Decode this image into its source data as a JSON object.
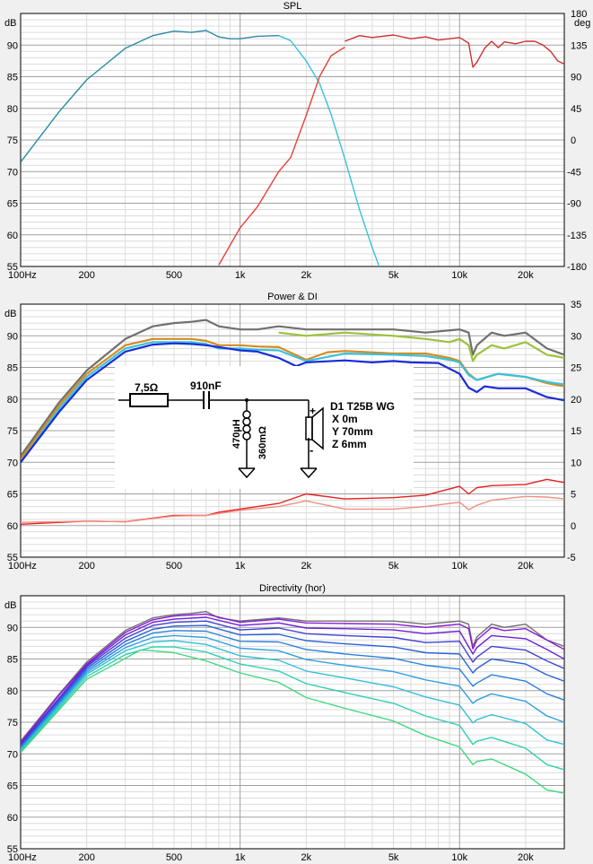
{
  "x_ticks": [
    {
      "v": 100,
      "label": "100Hz"
    },
    {
      "v": 200,
      "label": "200"
    },
    {
      "v": 500,
      "label": "500"
    },
    {
      "v": 1000,
      "label": "1k"
    },
    {
      "v": 2000,
      "label": "2k"
    },
    {
      "v": 5000,
      "label": "5k"
    },
    {
      "v": 10000,
      "label": "10k"
    },
    {
      "v": 20000,
      "label": "20k"
    }
  ],
  "chart_data": [
    {
      "type": "line",
      "title": "SPL",
      "ylabel": "dB",
      "y2label": "deg",
      "xlim": [
        100,
        30000
      ],
      "xscale": "log",
      "ylim": [
        55,
        95
      ],
      "y2lim": [
        -180,
        180
      ],
      "yticks": [
        55,
        60,
        65,
        70,
        75,
        80,
        85,
        90
      ],
      "y2ticks": [
        -180,
        -135,
        -90,
        -45,
        0,
        45,
        90,
        135,
        180
      ],
      "grid": true,
      "series": [
        {
          "color": "#2a8aa8",
          "axis": "left",
          "x": [
            100,
            150,
            200,
            300,
            400,
            500,
            600,
            700,
            800,
            900,
            1000,
            1200,
            1500
          ],
          "y": [
            71.5,
            79.5,
            84.5,
            89.5,
            91.5,
            92.2,
            92.0,
            92.3,
            91.3,
            91.0,
            91.0,
            91.4,
            91.5
          ]
        },
        {
          "color": "#35c3dc",
          "axis": "left",
          "x": [
            1500,
            1700,
            2000,
            2300,
            2600,
            3000,
            3500,
            4000,
            4300
          ],
          "y": [
            91.5,
            90.7,
            87.5,
            84.0,
            79.0,
            72.0,
            64.0,
            58.0,
            55.0
          ]
        },
        {
          "color": "#e8403a",
          "axis": "right",
          "x": [
            800,
            1000,
            1200,
            1500,
            1700,
            2000,
            2300,
            2600,
            3000
          ],
          "y": [
            -178,
            -125,
            -95,
            -45,
            -25,
            35,
            90,
            120,
            132
          ]
        },
        {
          "color": "#d03030",
          "axis": "left",
          "x": [
            3000,
            3500,
            4000,
            5000,
            6000,
            7000,
            8000,
            9000,
            10000,
            11000,
            11500,
            12000,
            13000,
            14000,
            15000,
            16000,
            18000,
            20000,
            22000,
            24000,
            26000,
            28000,
            30000
          ],
          "y": [
            90.6,
            91.5,
            91.2,
            91.6,
            91.0,
            91.3,
            90.8,
            91.0,
            91.2,
            90.3,
            86.5,
            87.3,
            89.5,
            90.6,
            89.6,
            90.5,
            90.2,
            90.6,
            90.6,
            90.0,
            89.0,
            87.5,
            87.0
          ]
        }
      ]
    },
    {
      "type": "line",
      "title": "Power & DI",
      "ylabel": "dB",
      "xlim": [
        100,
        30000
      ],
      "xscale": "log",
      "ylim": [
        55,
        95
      ],
      "y2lim": [
        -5,
        35
      ],
      "yticks": [
        55,
        60,
        65,
        70,
        75,
        80,
        85,
        90
      ],
      "y2ticks": [
        -5,
        0,
        5,
        10,
        15,
        20,
        25,
        30,
        35
      ],
      "grid": true,
      "series": [
        {
          "color": "#707070",
          "axis": "left",
          "x": [
            100,
            150,
            200,
            300,
            400,
            500,
            600,
            700,
            800,
            1000,
            1200,
            1500,
            2000,
            3000,
            5000,
            7000,
            10000,
            11000,
            11500,
            12000,
            14000,
            16000,
            20000,
            25000,
            30000
          ],
          "y": [
            71,
            79.5,
            84.5,
            89.5,
            91.5,
            92,
            92.2,
            92.5,
            91.5,
            91,
            91,
            91.5,
            91,
            91,
            91,
            90.5,
            91,
            90.5,
            87,
            88.5,
            90.5,
            90,
            90.5,
            88,
            87
          ]
        },
        {
          "color": "#9ac43a",
          "axis": "left",
          "x": [
            1500,
            2000,
            3000,
            5000,
            7000,
            9000,
            10000,
            11000,
            11500,
            12000,
            14000,
            16000,
            20000,
            25000,
            30000
          ],
          "y": [
            90.5,
            90,
            90.5,
            90,
            89.5,
            89,
            89.5,
            88.5,
            86,
            87,
            88.5,
            88,
            89,
            87,
            86.5
          ]
        },
        {
          "color": "#d88a20",
          "axis": "left",
          "x": [
            100,
            150,
            200,
            300,
            400,
            500,
            600,
            700,
            800,
            1000,
            1200,
            1500,
            2000,
            2500,
            3000,
            5000,
            7000,
            9000,
            10000,
            11000,
            12000,
            15000,
            20000,
            25000,
            30000
          ],
          "y": [
            70.5,
            79,
            84,
            88.5,
            89.5,
            89.5,
            89.5,
            89.2,
            88.5,
            88.5,
            88.3,
            88.2,
            86.2,
            87.4,
            87.6,
            87.2,
            87.2,
            86.5,
            86,
            84,
            83,
            84,
            83.5,
            82.5,
            82
          ]
        },
        {
          "color": "#35c3dc",
          "axis": "left",
          "x": [
            100,
            150,
            200,
            300,
            400,
            500,
            600,
            700,
            800,
            1000,
            1200,
            1500,
            2000,
            3000,
            5000,
            7000,
            9000,
            10000,
            11000,
            12000,
            15000,
            20000,
            25000,
            30000
          ],
          "y": [
            70,
            78.5,
            83.5,
            88,
            89,
            89,
            89,
            88.7,
            88,
            88,
            87.8,
            87.7,
            86,
            87.2,
            87,
            86.8,
            86.2,
            85.8,
            83.8,
            83,
            84,
            83.5,
            82.7,
            82.3
          ]
        },
        {
          "color": "#1a2cd8",
          "axis": "left",
          "x": [
            100,
            150,
            200,
            300,
            400,
            500,
            600,
            700,
            800,
            1000,
            1200,
            1500,
            1800,
            2000,
            3000,
            4000,
            5000,
            6000,
            8000,
            10000,
            11000,
            12000,
            13000,
            15000,
            20000,
            25000,
            30000
          ],
          "y": [
            70,
            78,
            83,
            87.5,
            88.6,
            88.8,
            88.7,
            88.5,
            88.2,
            87.7,
            87.5,
            86.5,
            85.2,
            85.8,
            86.1,
            85.8,
            86,
            85.8,
            85.7,
            84,
            81.8,
            81.1,
            82,
            81.7,
            81.7,
            80.3,
            79.8
          ]
        },
        {
          "color": "#e52020",
          "axis": "right",
          "x": [
            100,
            200,
            300,
            500,
            700,
            800,
            1000,
            1500,
            2000,
            3000,
            5000,
            7000,
            10000,
            11000,
            12000,
            14000,
            20000,
            25000,
            30000
          ],
          "y": [
            0.2,
            0.7,
            0.6,
            1.6,
            1.6,
            2.1,
            2.6,
            3.5,
            5,
            4.2,
            4.4,
            4.8,
            6.2,
            5,
            6,
            6.3,
            6.5,
            7.3,
            6.8
          ]
        },
        {
          "color": "#f09080",
          "axis": "right",
          "x": [
            100,
            200,
            300,
            500,
            700,
            1000,
            1500,
            2000,
            3000,
            5000,
            7000,
            10000,
            11000,
            12000,
            14000,
            20000,
            25000,
            30000
          ],
          "y": [
            0.5,
            0.7,
            0.6,
            1.5,
            1.6,
            2.4,
            3,
            3.9,
            2.6,
            2.6,
            3,
            3.7,
            2.5,
            3.2,
            4,
            4.6,
            4.5,
            4.2
          ]
        }
      ]
    },
    {
      "type": "line",
      "title": "Directivity (hor)",
      "ylabel": "dB",
      "xlim": [
        100,
        30000
      ],
      "xscale": "log",
      "ylim": [
        55,
        95
      ],
      "yticks": [
        55,
        60,
        65,
        70,
        75,
        80,
        85,
        90
      ],
      "grid": true,
      "series": [
        {
          "color": "#707070",
          "x": [
            100,
            150,
            200,
            300,
            400,
            500,
            600,
            700,
            800,
            1000,
            1500,
            2000,
            3000,
            5000,
            7000,
            10000,
            11000,
            11500,
            12000,
            14000,
            16000,
            20000,
            25000,
            30000
          ],
          "y": [
            72,
            79.5,
            84.5,
            89.5,
            91.5,
            92,
            92.2,
            92.5,
            91.5,
            91,
            91.5,
            91,
            91,
            91,
            90.5,
            91,
            90.5,
            87,
            88.5,
            90.5,
            90,
            90.5,
            88,
            87
          ]
        },
        {
          "color": "#8a1ad8",
          "x": [
            100,
            150,
            200,
            300,
            400,
            500,
            700,
            1000,
            1500,
            2000,
            3000,
            5000,
            7000,
            10000,
            11000,
            11500,
            12000,
            14000,
            16000,
            20000,
            25000,
            30000
          ],
          "y": [
            71.8,
            79.3,
            84.2,
            89.2,
            91.2,
            91.8,
            92.1,
            90.8,
            91.3,
            90.7,
            90.6,
            90.5,
            90,
            90.5,
            89.8,
            86.6,
            88,
            90,
            89.5,
            89.8,
            88,
            86.5
          ]
        },
        {
          "color": "#6a20d8",
          "x": [
            100,
            200,
            300,
            400,
            500,
            700,
            1000,
            1500,
            2000,
            3000,
            5000,
            7000,
            10000,
            11500,
            12000,
            14000,
            20000,
            25000,
            30000
          ],
          "y": [
            71.6,
            84,
            88.8,
            90.8,
            91.3,
            91.6,
            90.3,
            90.7,
            89.9,
            89.8,
            89.6,
            89,
            89.4,
            85.8,
            86.8,
            88.7,
            88.2,
            86.5,
            85
          ]
        },
        {
          "color": "#4040d8",
          "x": [
            100,
            200,
            300,
            400,
            500,
            700,
            1000,
            1500,
            2000,
            3000,
            5000,
            7000,
            10000,
            11500,
            12000,
            14000,
            20000,
            25000,
            30000
          ],
          "y": [
            71.4,
            83.8,
            88.3,
            90.3,
            90.8,
            91,
            89.6,
            89.9,
            89,
            88.7,
            88.4,
            87.6,
            87.8,
            84.5,
            85.3,
            87,
            86.4,
            84.7,
            83.5
          ]
        },
        {
          "color": "#2a60d8",
          "x": [
            100,
            200,
            300,
            400,
            500,
            700,
            1000,
            1500,
            2000,
            3000,
            5000,
            7000,
            10000,
            11500,
            12000,
            14000,
            20000,
            25000,
            30000
          ],
          "y": [
            71.2,
            83.5,
            87.8,
            89.7,
            90.2,
            90.3,
            88.8,
            88.9,
            87.9,
            87.4,
            86.9,
            86,
            85.8,
            82.8,
            83.5,
            85,
            84.2,
            82.5,
            81.5
          ]
        },
        {
          "color": "#2a80e0",
          "x": [
            100,
            200,
            300,
            400,
            500,
            700,
            1000,
            1500,
            2000,
            3000,
            5000,
            7000,
            10000,
            11500,
            12000,
            14000,
            20000,
            25000,
            30000
          ],
          "y": [
            71,
            83.2,
            87.3,
            89.1,
            89.5,
            89.4,
            87.8,
            87.7,
            86.5,
            85.8,
            85.1,
            84,
            83.4,
            80.7,
            81.2,
            82.5,
            81.5,
            79.5,
            78.5
          ]
        },
        {
          "color": "#30a0e0",
          "x": [
            100,
            200,
            300,
            400,
            500,
            700,
            1000,
            1500,
            2000,
            3000,
            5000,
            7000,
            10000,
            11500,
            12000,
            14000,
            20000,
            25000,
            30000
          ],
          "y": [
            70.8,
            82.9,
            86.8,
            88.4,
            88.7,
            88.4,
            86.7,
            86.3,
            84.9,
            84,
            83,
            81.7,
            80.7,
            78,
            78.5,
            79.5,
            78.3,
            76,
            75
          ]
        },
        {
          "color": "#30c0d8",
          "x": [
            100,
            200,
            300,
            400,
            500,
            700,
            1000,
            1500,
            2000,
            3000,
            5000,
            7000,
            10000,
            11500,
            12000,
            14000,
            20000,
            25000,
            30000
          ],
          "y": [
            70.6,
            82.6,
            86.3,
            87.7,
            87.9,
            87.3,
            85.5,
            84.8,
            83.1,
            82,
            80.6,
            79,
            77.7,
            74.9,
            75.4,
            76.2,
            74.8,
            72.2,
            71.5
          ]
        },
        {
          "color": "#30d0b0",
          "x": [
            100,
            200,
            300,
            400,
            500,
            700,
            1000,
            1500,
            2000,
            3000,
            5000,
            7000,
            10000,
            11500,
            12000,
            14000,
            20000,
            25000,
            30000
          ],
          "y": [
            70.4,
            82.2,
            85.7,
            86.9,
            86.9,
            86.1,
            84.2,
            83.1,
            81.1,
            79.7,
            78,
            76,
            74.5,
            71.5,
            72,
            72.6,
            70.9,
            68.3,
            67.5
          ]
        },
        {
          "color": "#40d880",
          "x": [
            100,
            200,
            300,
            350,
            400,
            500,
            700,
            1000,
            1500,
            2000,
            3000,
            5000,
            7000,
            10000,
            11500,
            12000,
            14000,
            20000,
            25000,
            30000
          ],
          "y": [
            70.2,
            81.8,
            85.1,
            86.4,
            86.3,
            86,
            84.7,
            82.8,
            81.3,
            78.9,
            77.2,
            75.2,
            72.9,
            71.1,
            68.3,
            68.8,
            69.2,
            66.8,
            64.3,
            63.8
          ]
        }
      ]
    }
  ],
  "schematic": {
    "resistor": "7,5Ω",
    "capacitor": "910nF",
    "inductor": "470µH",
    "inductor_resistance": "360mΩ",
    "driver": [
      "D1 T25B WG",
      "X 0m",
      "Y 70mm",
      "Z 6mm"
    ]
  },
  "colors": {
    "background": "#f0f0f0",
    "plot_bg": "#ffffff",
    "grid_minor": "#dcdcdc",
    "grid_major": "#a0a0a0",
    "axis": "#000000"
  }
}
